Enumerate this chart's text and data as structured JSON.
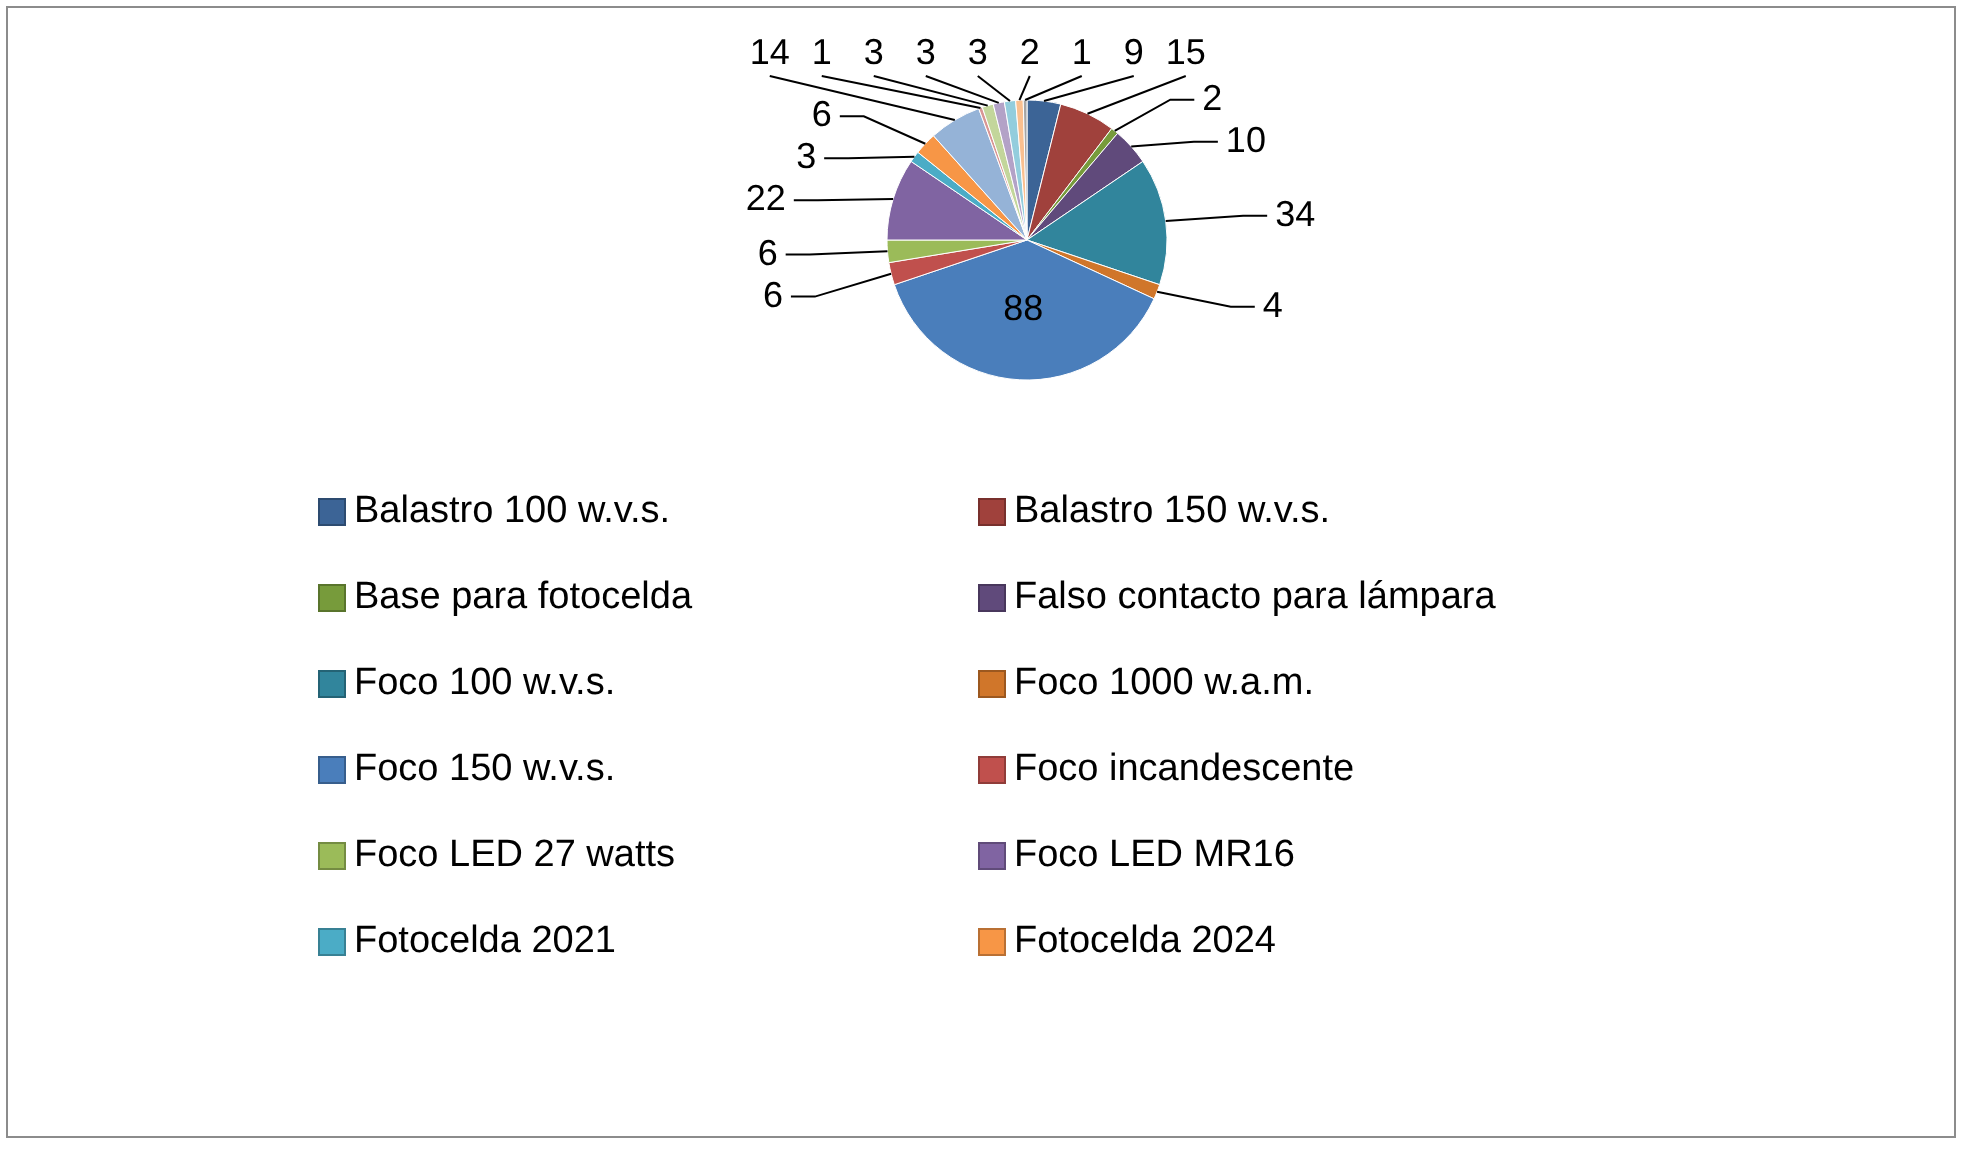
{
  "chart_data": {
    "type": "pie",
    "categories": [
      "Balastro 100 w.v.s.",
      "Balastro 150 w.v.s.",
      "Base para fotocelda",
      "Falso contacto para lámpara",
      "Foco 100 w.v.s.",
      "Foco 1000 w.a.m.",
      "Foco 150 w.v.s.",
      "Foco incandescente",
      "Foco LED 27 watts",
      "Foco LED MR16",
      "Fotocelda 2021",
      "Fotocelda 2024",
      null,
      null,
      null,
      null,
      null,
      null,
      null
    ],
    "values": [
      9,
      15,
      2,
      10,
      34,
      4,
      88,
      6,
      6,
      22,
      3,
      6,
      14,
      1,
      3,
      3,
      3,
      2,
      1
    ],
    "colors": [
      "#3c6496",
      "#a0413c",
      "#779b3b",
      "#604a7b",
      "#31859c",
      "#d0762a",
      "#4a7ebb",
      "#c0504d",
      "#9bbb59",
      "#8064a2",
      "#4bacc6",
      "#f79646",
      "#95b3d7",
      "#d99694",
      "#c3d69b",
      "#b3a2c7",
      "#93cddd",
      "#fac090",
      "#a5a5a5"
    ],
    "data_labels": true,
    "legend": "bottom"
  }
}
